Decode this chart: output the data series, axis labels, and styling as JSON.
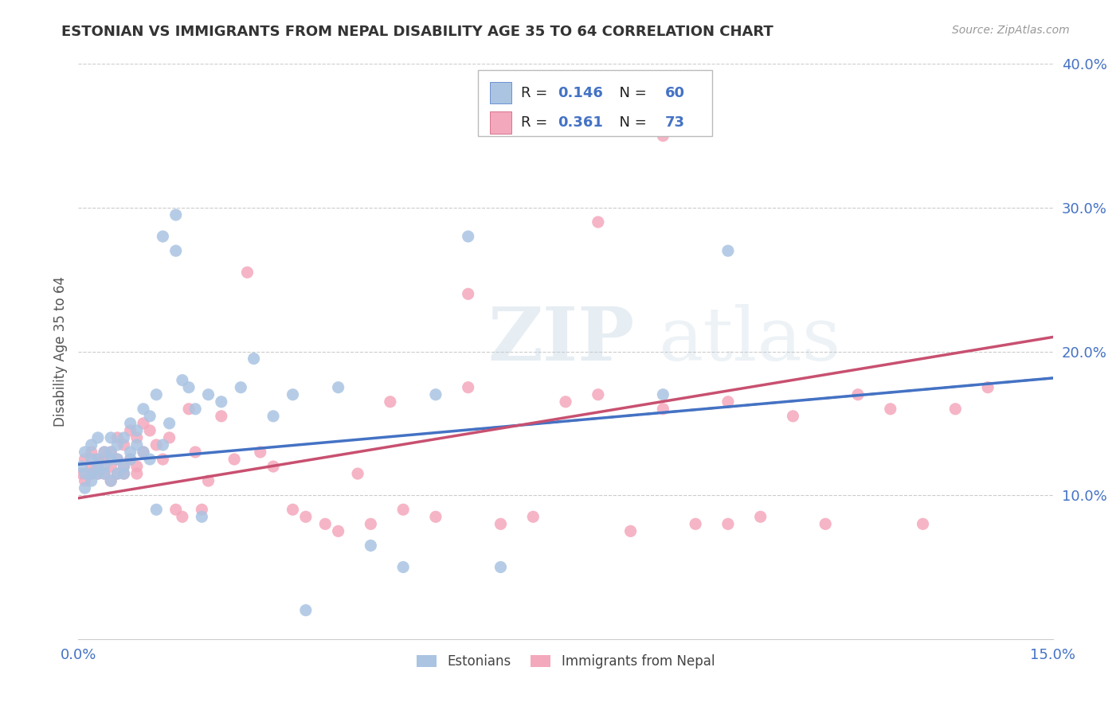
{
  "title": "ESTONIAN VS IMMIGRANTS FROM NEPAL DISABILITY AGE 35 TO 64 CORRELATION CHART",
  "source": "Source: ZipAtlas.com",
  "ylabel": "Disability Age 35 to 64",
  "xlim": [
    0.0,
    0.15
  ],
  "ylim": [
    0.0,
    0.4
  ],
  "xtick_positions": [
    0.0,
    0.05,
    0.1,
    0.15
  ],
  "xtick_labels": [
    "0.0%",
    "",
    "",
    "15.0%"
  ],
  "ytick_positions": [
    0.1,
    0.2,
    0.3,
    0.4
  ],
  "ytick_labels": [
    "10.0%",
    "20.0%",
    "30.0%",
    "40.0%"
  ],
  "color_estonian": "#aac4e2",
  "color_nepal": "#f4a8bc",
  "line_color_estonian": "#4472c4",
  "line_color_nepal": "#c85070",
  "watermark": "ZIPatlas",
  "background_color": "#ffffff",
  "estonian_x": [
    0.0005,
    0.001,
    0.001,
    0.001,
    0.002,
    0.002,
    0.002,
    0.002,
    0.003,
    0.003,
    0.003,
    0.003,
    0.004,
    0.004,
    0.004,
    0.005,
    0.005,
    0.005,
    0.005,
    0.006,
    0.006,
    0.006,
    0.007,
    0.007,
    0.007,
    0.008,
    0.008,
    0.008,
    0.009,
    0.009,
    0.01,
    0.01,
    0.011,
    0.011,
    0.012,
    0.012,
    0.013,
    0.013,
    0.014,
    0.015,
    0.015,
    0.016,
    0.017,
    0.018,
    0.019,
    0.02,
    0.022,
    0.025,
    0.027,
    0.03,
    0.033,
    0.035,
    0.04,
    0.045,
    0.05,
    0.055,
    0.06,
    0.065,
    0.09,
    0.1
  ],
  "estonian_y": [
    0.12,
    0.13,
    0.115,
    0.105,
    0.125,
    0.135,
    0.115,
    0.11,
    0.14,
    0.12,
    0.115,
    0.125,
    0.13,
    0.115,
    0.12,
    0.14,
    0.125,
    0.11,
    0.13,
    0.135,
    0.115,
    0.125,
    0.14,
    0.12,
    0.115,
    0.15,
    0.13,
    0.125,
    0.145,
    0.135,
    0.16,
    0.13,
    0.155,
    0.125,
    0.09,
    0.17,
    0.135,
    0.28,
    0.15,
    0.295,
    0.27,
    0.18,
    0.175,
    0.16,
    0.085,
    0.17,
    0.165,
    0.175,
    0.195,
    0.155,
    0.17,
    0.02,
    0.175,
    0.065,
    0.05,
    0.17,
    0.28,
    0.05,
    0.17,
    0.27
  ],
  "nepal_x": [
    0.0005,
    0.001,
    0.001,
    0.002,
    0.002,
    0.002,
    0.003,
    0.003,
    0.003,
    0.004,
    0.004,
    0.004,
    0.005,
    0.005,
    0.005,
    0.006,
    0.006,
    0.006,
    0.007,
    0.007,
    0.007,
    0.008,
    0.008,
    0.009,
    0.009,
    0.009,
    0.01,
    0.01,
    0.011,
    0.012,
    0.013,
    0.014,
    0.015,
    0.016,
    0.017,
    0.018,
    0.019,
    0.02,
    0.022,
    0.024,
    0.026,
    0.028,
    0.03,
    0.033,
    0.035,
    0.038,
    0.04,
    0.043,
    0.045,
    0.048,
    0.05,
    0.055,
    0.06,
    0.065,
    0.07,
    0.075,
    0.08,
    0.085,
    0.09,
    0.095,
    0.1,
    0.105,
    0.11,
    0.115,
    0.12,
    0.125,
    0.13,
    0.135,
    0.14,
    0.08,
    0.09,
    0.1,
    0.06
  ],
  "nepal_y": [
    0.115,
    0.125,
    0.11,
    0.12,
    0.13,
    0.115,
    0.125,
    0.115,
    0.12,
    0.13,
    0.115,
    0.125,
    0.13,
    0.12,
    0.11,
    0.14,
    0.125,
    0.115,
    0.135,
    0.12,
    0.115,
    0.145,
    0.125,
    0.14,
    0.12,
    0.115,
    0.15,
    0.13,
    0.145,
    0.135,
    0.125,
    0.14,
    0.09,
    0.085,
    0.16,
    0.13,
    0.09,
    0.11,
    0.155,
    0.125,
    0.255,
    0.13,
    0.12,
    0.09,
    0.085,
    0.08,
    0.075,
    0.115,
    0.08,
    0.165,
    0.09,
    0.085,
    0.175,
    0.08,
    0.085,
    0.165,
    0.17,
    0.075,
    0.16,
    0.08,
    0.165,
    0.085,
    0.155,
    0.08,
    0.17,
    0.16,
    0.08,
    0.16,
    0.175,
    0.29,
    0.35,
    0.08,
    0.24
  ],
  "estonian_reg": [
    0.1215,
    0.1815
  ],
  "nepal_reg": [
    0.098,
    0.21
  ]
}
